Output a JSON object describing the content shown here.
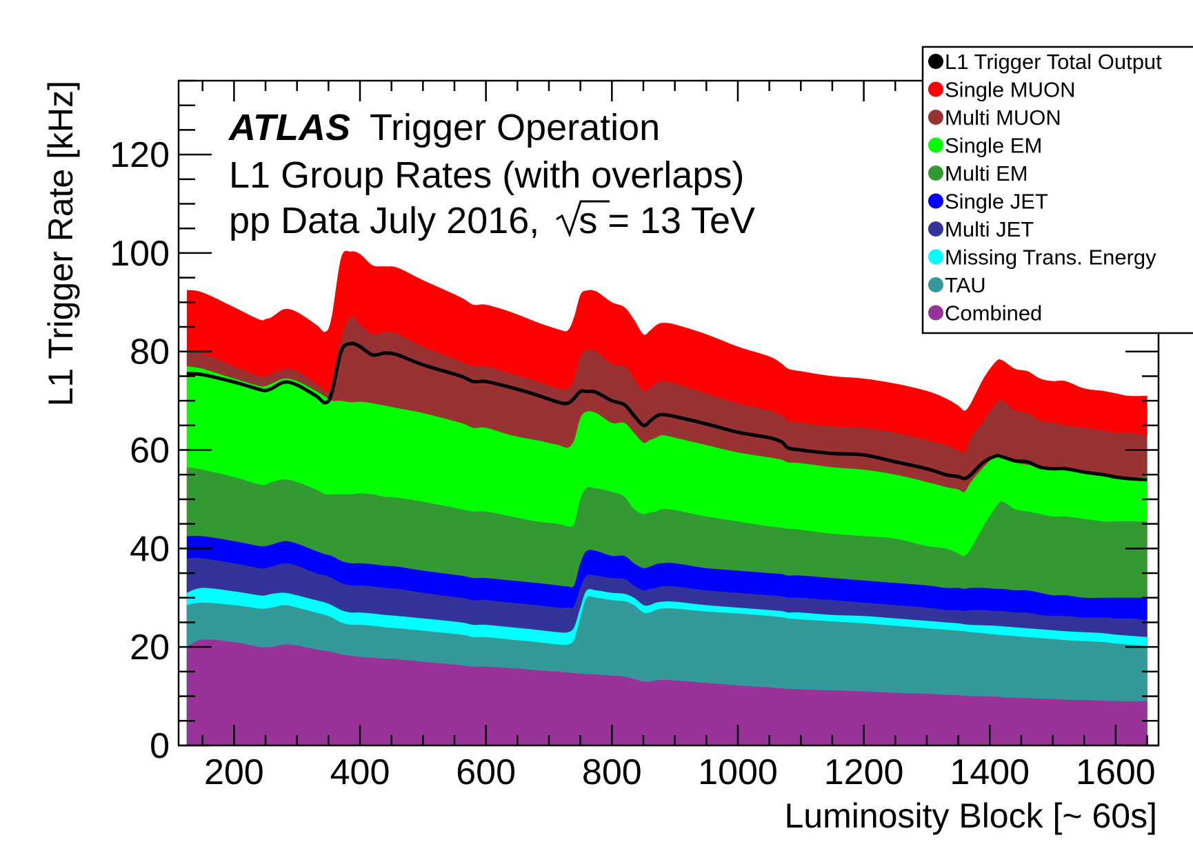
{
  "annotation": {
    "experiment": "ATLAS",
    "experiment_suffix": "Trigger Operation",
    "line2": "L1 Group Rates (with overlaps)",
    "line3_prefix": "pp Data July 2016,",
    "line3_sqrt": "s",
    "line3_suffix": "= 13 TeV"
  },
  "legend_placement": "top-right, overlapping plot frame",
  "chart_data": {
    "type": "area",
    "stacked": false,
    "xlabel": "Luminosity Block [~ 60s]",
    "ylabel": "L1 Trigger Rate [kHz]",
    "xlim": [
      112,
      1668
    ],
    "ylim": [
      0,
      135
    ],
    "x_ticks": [
      200,
      400,
      600,
      800,
      1000,
      1200,
      1400,
      1600
    ],
    "y_ticks": [
      0,
      20,
      40,
      60,
      80,
      100,
      120
    ],
    "x_tick_labels": [
      "200",
      "400",
      "600",
      "800",
      "1000",
      "1200",
      "1400",
      "1600"
    ],
    "y_tick_labels": [
      "0",
      "20",
      "40",
      "60",
      "80",
      "100",
      "120"
    ],
    "grid": false,
    "x": [
      125,
      150,
      200,
      240,
      250,
      260,
      280,
      300,
      330,
      345,
      355,
      370,
      385,
      400,
      420,
      440,
      460,
      500,
      560,
      580,
      600,
      640,
      680,
      715,
      730,
      740,
      750,
      760,
      775,
      800,
      820,
      835,
      850,
      860,
      870,
      880,
      900,
      950,
      1000,
      1050,
      1070,
      1080,
      1100,
      1150,
      1200,
      1250,
      1300,
      1330,
      1350,
      1360,
      1370,
      1390,
      1410,
      1420,
      1440,
      1460,
      1480,
      1500,
      1520,
      1550,
      1580,
      1600,
      1620,
      1650
    ],
    "series": [
      {
        "name": "Single MUON",
        "color": "#ff0000",
        "values": [
          92.5,
          92,
          89,
          86.5,
          86.6,
          87,
          88.6,
          88,
          85.5,
          84,
          87,
          99,
          100.3,
          99.8,
          97.5,
          97.3,
          97,
          94.5,
          91,
          89.5,
          89.5,
          88,
          86,
          84.5,
          84.3,
          87,
          91.5,
          92.4,
          92.2,
          90,
          89,
          86.5,
          83.5,
          84.2,
          85.3,
          85.8,
          85.5,
          83.5,
          81,
          79,
          77.5,
          76.5,
          76,
          75,
          74.5,
          73.5,
          72,
          70.5,
          69,
          68,
          69.5,
          74.5,
          78,
          78.2,
          76.5,
          76,
          74.5,
          74,
          74,
          72.5,
          72,
          71.5,
          71,
          71
        ]
      },
      {
        "name": "Multi MUON",
        "color": "#993333",
        "values": [
          80,
          79.5,
          77,
          75,
          75,
          75.5,
          76.5,
          76,
          73.5,
          72,
          73,
          82.5,
          87,
          85.5,
          83.5,
          84,
          83.5,
          81,
          78,
          77,
          77,
          75.5,
          74,
          72.5,
          72.5,
          74.5,
          79,
          80.3,
          80,
          77.5,
          77,
          74.5,
          72,
          72.5,
          73.5,
          74,
          73.5,
          71.5,
          69.5,
          68,
          67,
          66,
          65.5,
          64.8,
          64.5,
          63.5,
          62,
          61,
          60,
          59.5,
          62.5,
          66,
          69.5,
          70,
          68,
          67.5,
          66,
          65.5,
          65,
          64.5,
          64,
          63.5,
          63.5,
          63
        ]
      },
      {
        "name": "Single EM",
        "color": "#00ff00",
        "values": [
          77,
          76.5,
          74.5,
          73,
          73,
          73.5,
          74.5,
          74,
          72,
          70.8,
          70,
          70,
          69.7,
          69.8,
          69.5,
          69,
          68.5,
          67.5,
          65.5,
          64.5,
          64.5,
          63,
          62,
          61,
          60.5,
          62,
          66.5,
          67.8,
          67.5,
          65.5,
          65.5,
          63.5,
          61.5,
          62,
          62.5,
          63,
          62.5,
          61,
          59.5,
          58.5,
          58,
          57.5,
          57.3,
          56.5,
          56,
          55,
          53.5,
          52.5,
          52,
          51.5,
          53.5,
          56.5,
          59,
          59,
          57.5,
          57,
          56.5,
          56,
          56,
          55.5,
          55,
          54.5,
          54.5,
          54.5
        ]
      },
      {
        "name": "Multi EM",
        "color": "#339933",
        "values": [
          56.5,
          56,
          54.5,
          53,
          53,
          53.5,
          54,
          53.5,
          52,
          51,
          51,
          51,
          51,
          51.2,
          51,
          50.5,
          50.3,
          49.5,
          48,
          47.5,
          47.5,
          46.5,
          45.5,
          45,
          44.5,
          45,
          50,
          52.3,
          52.2,
          51.5,
          50.5,
          48,
          47,
          47.3,
          47.5,
          48,
          47.8,
          46.5,
          45.5,
          44.5,
          44.2,
          44,
          43.8,
          43,
          42.5,
          42,
          40.5,
          40,
          39,
          38.5,
          40,
          44.5,
          48.5,
          49.5,
          48,
          47.5,
          47,
          46.5,
          46.5,
          46,
          45.5,
          45.5,
          45.5,
          45.5
        ]
      },
      {
        "name": "Single JET",
        "color": "#0000ff",
        "values": [
          42.5,
          42.5,
          41.5,
          40.5,
          40.5,
          40.8,
          41.5,
          41,
          39.5,
          38.8,
          38.5,
          37.5,
          37,
          37,
          36.8,
          36.5,
          36.3,
          35.5,
          34.5,
          34,
          34,
          33.5,
          33,
          32.5,
          32.3,
          32.5,
          37,
          39.5,
          39.5,
          38.5,
          38.5,
          37,
          36,
          36.3,
          36.8,
          37,
          37,
          36,
          35.5,
          35,
          34.8,
          34.5,
          34.5,
          34,
          33.5,
          33,
          32.5,
          32,
          32,
          31.8,
          32,
          32,
          31.8,
          31.8,
          31.5,
          31.5,
          31,
          30.5,
          30.5,
          30,
          30,
          30,
          30,
          30
        ]
      },
      {
        "name": "Multi JET",
        "color": "#333399",
        "values": [
          38,
          38,
          37,
          36,
          36,
          36.3,
          37,
          36.5,
          35,
          34.5,
          34,
          33,
          32.5,
          32.5,
          32.3,
          32,
          31.8,
          31,
          30,
          29.5,
          29.5,
          29,
          28.5,
          28,
          28,
          28.3,
          32,
          34.5,
          34.5,
          34,
          33.8,
          32.5,
          31.5,
          31.8,
          32,
          32.3,
          32.3,
          31.5,
          31,
          30.5,
          30.3,
          30,
          30,
          29.5,
          29,
          28.5,
          28,
          27.5,
          27.5,
          27.3,
          27.5,
          27.5,
          27.3,
          27.3,
          27,
          27,
          26.5,
          26.3,
          26.3,
          26,
          26,
          25.8,
          25.8,
          25.5
        ]
      },
      {
        "name": "Missing Trans. Energy",
        "color": "#00ffff",
        "values": [
          31,
          32,
          31.3,
          30.5,
          30.5,
          30.8,
          31,
          30.5,
          29.5,
          29,
          28.5,
          27.5,
          27,
          27,
          26.8,
          26.5,
          26.3,
          25.8,
          25,
          24.5,
          24.5,
          24,
          23.5,
          23,
          23,
          24,
          28,
          31.5,
          31.5,
          31,
          30.8,
          30,
          28.5,
          28.5,
          29,
          29.2,
          29.2,
          28.5,
          28,
          27.5,
          27.3,
          27,
          27,
          26.5,
          26.3,
          25.8,
          25.3,
          25,
          24.8,
          24.6,
          24.5,
          24.4,
          24.3,
          24.2,
          24,
          23.8,
          23.6,
          23.4,
          23.2,
          23,
          22.8,
          22.5,
          22.3,
          22
        ]
      },
      {
        "name": "TAU",
        "color": "#339999",
        "values": [
          28.5,
          29,
          28.5,
          27.8,
          27.8,
          28,
          28.5,
          28,
          27,
          26.5,
          26,
          25,
          24.5,
          24.5,
          24.3,
          24,
          23.8,
          23.3,
          22.5,
          22,
          22,
          21.5,
          21,
          20.5,
          20.5,
          21.5,
          26,
          30,
          30,
          29.5,
          29.3,
          28.5,
          27,
          27,
          27.5,
          27.8,
          27.8,
          27.2,
          26.8,
          26.3,
          26,
          25.8,
          25.6,
          25.2,
          24.8,
          24.3,
          23.8,
          23.5,
          23.3,
          23.2,
          23,
          22.8,
          22.5,
          22.4,
          22.2,
          22,
          21.8,
          21.6,
          21.4,
          21.2,
          21,
          20.7,
          20.5,
          20.2
        ]
      },
      {
        "name": "Combined",
        "color": "#993399",
        "values": [
          20,
          21.5,
          21,
          20,
          20,
          20,
          20.5,
          20.3,
          19.5,
          19.2,
          19,
          18.5,
          18.2,
          18,
          17.8,
          17.6,
          17.5,
          17,
          16.3,
          16,
          16,
          15.7,
          15.3,
          15,
          14.8,
          14.7,
          14.6,
          14.5,
          14.4,
          14.2,
          14,
          13.5,
          13,
          13,
          13.2,
          13.3,
          13.2,
          12.7,
          12.2,
          11.8,
          11.6,
          11.5,
          11.4,
          11.2,
          11,
          10.7,
          10.5,
          10.3,
          10.2,
          10.1,
          10,
          10,
          9.9,
          9.8,
          9.7,
          9.6,
          9.5,
          9.4,
          9.3,
          9.2,
          9.1,
          9,
          9,
          9
        ]
      }
    ],
    "line": {
      "name": "L1 Trigger Total Output",
      "color": "#000000",
      "values": [
        75.5,
        75.3,
        73.8,
        72.3,
        72.1,
        72.5,
        73.8,
        73.2,
        71,
        69.6,
        71.5,
        80,
        81.6,
        81,
        79.3,
        79.7,
        79.3,
        77.3,
        75,
        73.9,
        73.9,
        72.7,
        71.2,
        69.7,
        69.5,
        70.5,
        71.9,
        71.9,
        71.7,
        70,
        69.2,
        67,
        65,
        65.8,
        66.8,
        67.2,
        66.8,
        65.3,
        63.6,
        62.5,
        61.6,
        60.4,
        60,
        59.3,
        59,
        57.6,
        56.2,
        55,
        54.6,
        54.2,
        55,
        57.5,
        58.8,
        58.6,
        57.8,
        57.6,
        56.5,
        56.2,
        56.2,
        55.5,
        55,
        54.5,
        54.2,
        54
      ]
    }
  },
  "legend": [
    {
      "label": "L1 Trigger Total Output",
      "color": "#000000"
    },
    {
      "label": "Single MUON",
      "color": "#ff0000"
    },
    {
      "label": "Multi MUON",
      "color": "#993333"
    },
    {
      "label": "Single EM",
      "color": "#00ff00"
    },
    {
      "label": "Multi EM",
      "color": "#339933"
    },
    {
      "label": "Single JET",
      "color": "#0000ff"
    },
    {
      "label": "Multi JET",
      "color": "#333399"
    },
    {
      "label": "Missing Trans. Energy",
      "color": "#00ffff"
    },
    {
      "label": "TAU",
      "color": "#339999"
    },
    {
      "label": "Combined",
      "color": "#993399"
    }
  ]
}
